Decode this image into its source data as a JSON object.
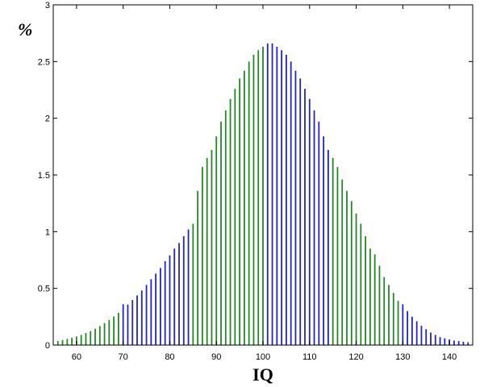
{
  "chart_data": {
    "type": "bar",
    "xlabel": "IQ",
    "ylabel": "%",
    "xlim": [
      55,
      145
    ],
    "ylim": [
      0,
      3
    ],
    "x_ticks": [
      "60",
      "70",
      "80",
      "90",
      "100",
      "110",
      "120",
      "130",
      "140"
    ],
    "y_ticks": [
      "0",
      "0.5",
      "1",
      "1.5",
      "2",
      "2.5",
      "3"
    ],
    "x_tick_values": [
      60,
      70,
      80,
      90,
      100,
      110,
      120,
      130,
      140
    ],
    "y_tick_values": [
      0,
      0.5,
      1,
      1.5,
      2,
      2.5,
      3
    ],
    "distribution": {
      "mean": 100,
      "sd": 15
    },
    "x": [
      56,
      57,
      58,
      59,
      60,
      61,
      62,
      63,
      64,
      65,
      66,
      67,
      68,
      69,
      70,
      71,
      72,
      73,
      74,
      75,
      76,
      77,
      78,
      79,
      80,
      81,
      82,
      83,
      84,
      85,
      86,
      87,
      88,
      89,
      90,
      91,
      92,
      93,
      94,
      95,
      96,
      97,
      98,
      99,
      100,
      101,
      102,
      103,
      104,
      105,
      106,
      107,
      108,
      109,
      110,
      111,
      112,
      113,
      114,
      115,
      116,
      117,
      118,
      119,
      120,
      121,
      122,
      123,
      124,
      125,
      126,
      127,
      128,
      129,
      130,
      131,
      132,
      133,
      134,
      135,
      136,
      137,
      138,
      139,
      140,
      141,
      142,
      143,
      144
    ],
    "values": [
      0.036,
      0.044,
      0.054,
      0.065,
      0.076,
      0.09,
      0.106,
      0.123,
      0.145,
      0.167,
      0.194,
      0.222,
      0.252,
      0.284,
      0.36,
      0.357,
      0.397,
      0.438,
      0.482,
      0.53,
      0.58,
      0.63,
      0.68,
      0.74,
      0.79,
      0.85,
      0.9,
      0.96,
      1.02,
      1.07,
      1.36,
      1.57,
      1.65,
      1.72,
      1.84,
      1.97,
      2.07,
      2.17,
      2.26,
      2.35,
      2.42,
      2.5,
      2.56,
      2.6,
      2.63,
      2.66,
      2.66,
      2.63,
      2.6,
      2.56,
      2.5,
      2.42,
      2.35,
      2.26,
      2.17,
      2.07,
      1.97,
      1.84,
      1.72,
      1.65,
      1.57,
      1.46,
      1.36,
      1.27,
      1.16,
      1.07,
      0.96,
      0.85,
      0.8,
      0.7,
      0.6,
      0.53,
      0.46,
      0.39,
      0.36,
      0.3,
      0.25,
      0.21,
      0.17,
      0.14,
      0.11,
      0.09,
      0.07,
      0.06,
      0.05,
      0.04,
      0.035,
      0.03,
      0.025
    ],
    "bar_color_bands": [
      {
        "from": 56,
        "to": 69,
        "color": "#228822"
      },
      {
        "from": 70,
        "to": 84,
        "color": "#2222cc"
      },
      {
        "from": 85,
        "to": 100,
        "color": "#228822"
      },
      {
        "from": 101,
        "to": 114,
        "color": "#2222cc"
      },
      {
        "from": 115,
        "to": 129,
        "color": "#228822"
      },
      {
        "from": 130,
        "to": 144,
        "color": "#2222cc"
      }
    ],
    "grid": false,
    "legend": "none"
  }
}
